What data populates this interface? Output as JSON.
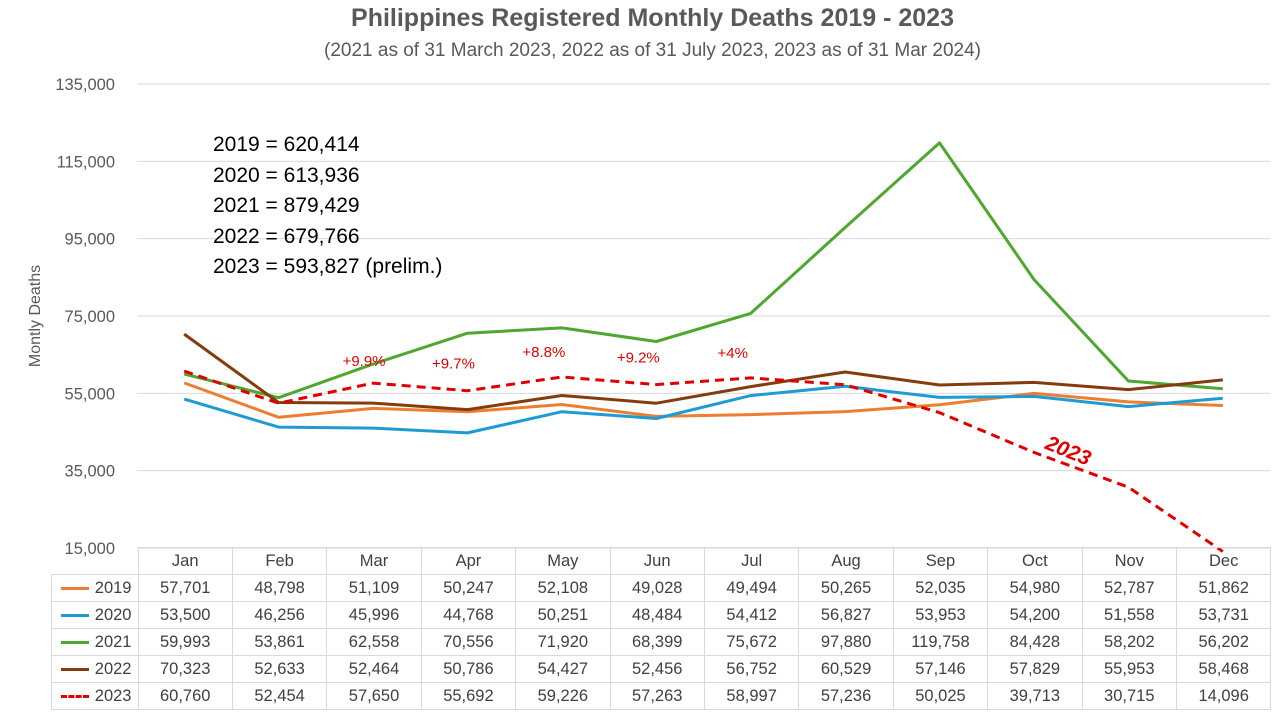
{
  "chart_data": {
    "type": "line",
    "title": "Philippines Registered Monthly Deaths 2019 - 2023",
    "subtitle": "(2021 as of 31 March 2023, 2022 as of 31 July 2023, 2023 as of 31 Mar 2024)",
    "ylabel": "Montly Deaths",
    "ylim": [
      15000,
      135000
    ],
    "yticks": [
      "135,000",
      "115,000",
      "95,000",
      "75,000",
      "55,000",
      "35,000",
      "15,000"
    ],
    "yticks_values": [
      135000,
      115000,
      95000,
      75000,
      55000,
      35000,
      15000
    ],
    "grid": true,
    "categories": [
      "Jan",
      "Feb",
      "Mar",
      "Apr",
      "May",
      "Jun",
      "Jul",
      "Aug",
      "Sep",
      "Oct",
      "Nov",
      "Dec"
    ],
    "series": [
      {
        "name": "2019",
        "color": "#ED7D31",
        "dashed": false,
        "values": [
          57701,
          48798,
          51109,
          50247,
          52108,
          49028,
          49494,
          50265,
          52035,
          54980,
          52787,
          51862
        ],
        "labels": [
          "57,701",
          "48,798",
          "51,109",
          "50,247",
          "52,108",
          "49,028",
          "49,494",
          "50,265",
          "52,035",
          "54,980",
          "52,787",
          "51,862"
        ]
      },
      {
        "name": "2020",
        "color": "#1F9BD3",
        "dashed": false,
        "values": [
          53500,
          46256,
          45996,
          44768,
          50251,
          48484,
          54412,
          56827,
          53953,
          54200,
          51558,
          53731
        ],
        "labels": [
          "53,500",
          "46,256",
          "45,996",
          "44,768",
          "50,251",
          "48,484",
          "54,412",
          "56,827",
          "53,953",
          "54,200",
          "51,558",
          "53,731"
        ]
      },
      {
        "name": "2021",
        "color": "#4EA72E",
        "dashed": false,
        "values": [
          59993,
          53861,
          62558,
          70556,
          71920,
          68399,
          75672,
          97880,
          119758,
          84428,
          58202,
          56202
        ],
        "labels": [
          "59,993",
          "53,861",
          "62,558",
          "70,556",
          "71,920",
          "68,399",
          "75,672",
          "97,880",
          "119,758",
          "84,428",
          "58,202",
          "56,202"
        ]
      },
      {
        "name": "2022",
        "color": "#843C0C",
        "dashed": false,
        "values": [
          70323,
          52633,
          52464,
          50786,
          54427,
          52456,
          56752,
          60529,
          57146,
          57829,
          55953,
          58468
        ],
        "labels": [
          "70,323",
          "52,633",
          "52,464",
          "50,786",
          "54,427",
          "52,456",
          "56,752",
          "60,529",
          "57,146",
          "57,829",
          "55,953",
          "58,468"
        ]
      },
      {
        "name": "2023",
        "color": "#E00000",
        "dashed": true,
        "values": [
          60760,
          52454,
          57650,
          55692,
          59226,
          57263,
          58997,
          57236,
          50025,
          39713,
          30715,
          14096
        ],
        "labels": [
          "60,760",
          "52,454",
          "57,650",
          "55,692",
          "59,226",
          "57,263",
          "58,997",
          "57,236",
          "50,025",
          "39,713",
          "30,715",
          "14,096"
        ]
      }
    ],
    "annotations": [
      {
        "text": "+9.9%",
        "month": "Mar"
      },
      {
        "text": "+9.7%",
        "month": "Apr"
      },
      {
        "text": "+8.8%",
        "month": "May"
      },
      {
        "text": "+9.2%",
        "month": "Jun"
      },
      {
        "text": "+4%",
        "month": "Jul"
      },
      {
        "text": "2023",
        "month": "Oct",
        "style": "bold-italic"
      }
    ],
    "totals": [
      "2019 = 620,414",
      "2020 = 613,936",
      "2021 = 879,429",
      "2022 = 679,766",
      "2023 = 593,827 (prelim.)"
    ],
    "legend_placement": "data-table"
  }
}
